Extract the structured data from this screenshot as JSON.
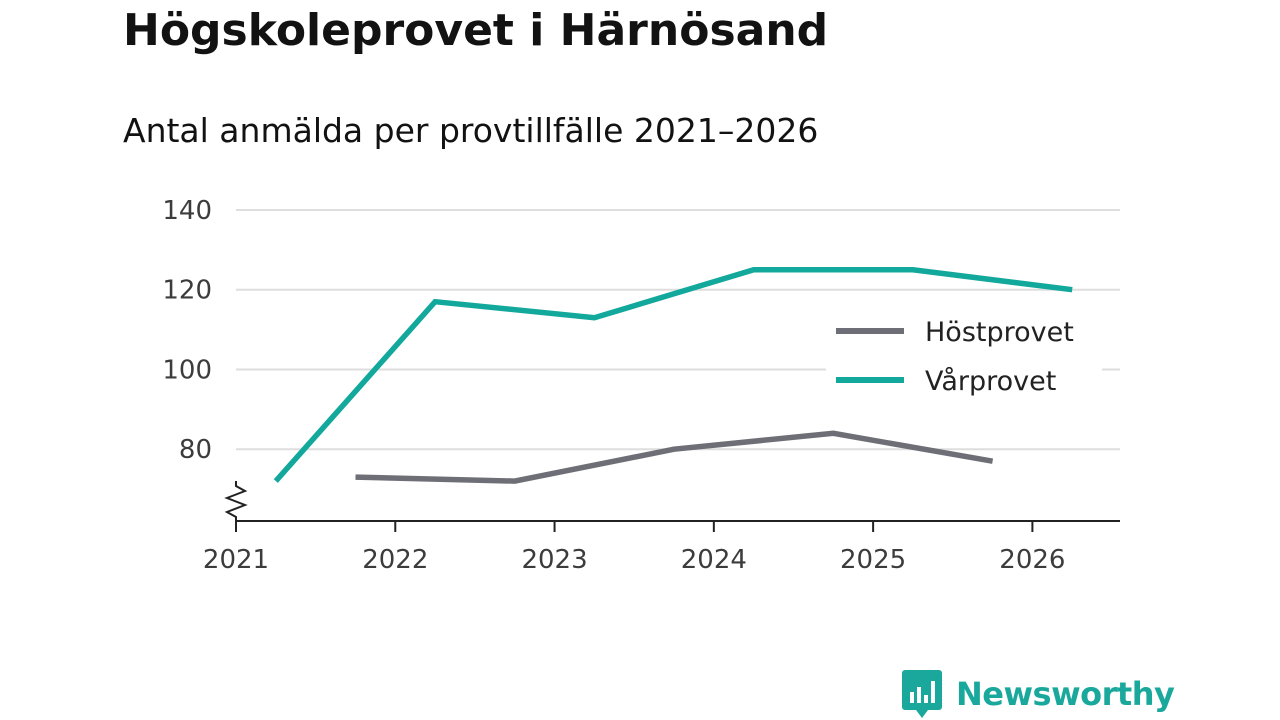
{
  "header": {
    "title": "Högskoleprovet i Härnösand",
    "subtitle": "Antal anmälda per provtillfälle 2021–2026"
  },
  "brand": {
    "name": "Newsworthy",
    "color": "#1aa89c"
  },
  "chart_data": {
    "type": "line",
    "title": "Högskoleprovet i Härnösand",
    "subtitle": "Antal anmälda per provtillfälle 2021–2026",
    "xlabel": "",
    "ylabel": "",
    "x_ticks": [
      "2021",
      "2022",
      "2023",
      "2024",
      "2025",
      "2026"
    ],
    "y_ticks": [
      80,
      100,
      120,
      140
    ],
    "xlim": [
      2021,
      2026.55
    ],
    "ylim": [
      62,
      140
    ],
    "y_axis_break": true,
    "grid": true,
    "legend_position": "right",
    "series": [
      {
        "name": "Höstprovet",
        "color": "#6e6e76",
        "x": [
          2021.75,
          2022.75,
          2023.75,
          2024.75,
          2025.75
        ],
        "values": [
          73,
          72,
          80,
          84,
          77
        ]
      },
      {
        "name": "Vårprovet",
        "color": "#12a89c",
        "x": [
          2021.25,
          2022.25,
          2023.25,
          2024.25,
          2025.25,
          2026.25
        ],
        "values": [
          72,
          117,
          113,
          125,
          125,
          120
        ]
      }
    ]
  }
}
